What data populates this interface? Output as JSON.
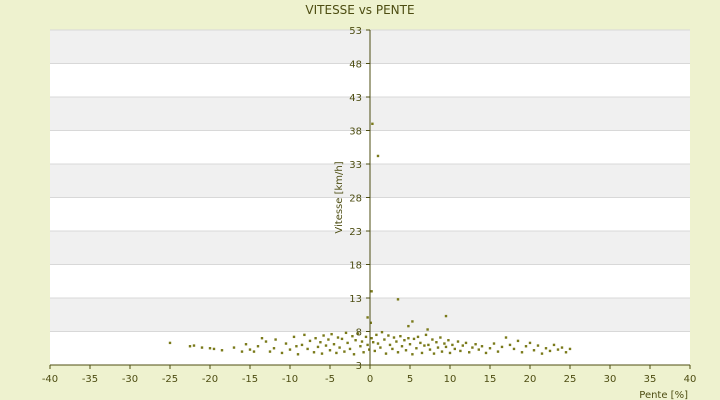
{
  "chart_data": {
    "type": "scatter",
    "title": "VITESSE vs PENTE",
    "xlabel": "Pente [%]",
    "ylabel": "Vitesse [km/h]",
    "xlim": [
      -40,
      40
    ],
    "ylim": [
      3,
      53
    ],
    "xticks": [
      -40,
      -35,
      -30,
      -25,
      -20,
      -15,
      -10,
      -5,
      0,
      5,
      10,
      15,
      20,
      25,
      30,
      35,
      40
    ],
    "yticks": [
      3,
      8,
      13,
      18,
      23,
      28,
      33,
      38,
      43,
      48,
      53
    ],
    "grid": true,
    "legend": "none",
    "colors": {
      "background": "#eef2cf",
      "plot": "#ffffff",
      "band": "#f0f0f0",
      "point": "#7a7a1a",
      "axis": "#4d4d12",
      "text": "#4d4d12"
    },
    "series": [
      {
        "points": [
          [
            0.3,
            39
          ],
          [
            1.0,
            34.2
          ],
          [
            0.2,
            14
          ],
          [
            3.5,
            12.8
          ],
          [
            9.5,
            10.3
          ],
          [
            -0.3,
            10.1
          ],
          [
            0.1,
            9.3
          ],
          [
            5.3,
            9.5
          ],
          [
            4.8,
            8.8
          ],
          [
            7.2,
            8.3
          ],
          [
            -25,
            6.3
          ],
          [
            -22.5,
            5.8
          ],
          [
            -22,
            5.9
          ],
          [
            -21,
            5.6
          ],
          [
            -20,
            5.5
          ],
          [
            -19.5,
            5.4
          ],
          [
            -18.5,
            5.2
          ],
          [
            -17,
            5.6
          ],
          [
            -16,
            5.0
          ],
          [
            -15.5,
            6.1
          ],
          [
            -15,
            5.3
          ],
          [
            -14.5,
            5.0
          ],
          [
            -14,
            5.8
          ],
          [
            -13.5,
            7.0
          ],
          [
            -13,
            6.5
          ],
          [
            -12.5,
            5.0
          ],
          [
            -12,
            5.5
          ],
          [
            -11.8,
            6.8
          ],
          [
            -11,
            4.8
          ],
          [
            -10.5,
            6.2
          ],
          [
            -10,
            5.3
          ],
          [
            -9.5,
            7.2
          ],
          [
            -9.2,
            5.8
          ],
          [
            -9,
            4.6
          ],
          [
            -8.5,
            6.0
          ],
          [
            -8.2,
            7.5
          ],
          [
            -7.8,
            5.4
          ],
          [
            -7.5,
            6.6
          ],
          [
            -7,
            4.9
          ],
          [
            -6.8,
            7.0
          ],
          [
            -6.5,
            5.7
          ],
          [
            -6.2,
            6.4
          ],
          [
            -6,
            4.7
          ],
          [
            -5.8,
            7.4
          ],
          [
            -5.5,
            5.9
          ],
          [
            -5.2,
            6.8
          ],
          [
            -5,
            5.2
          ],
          [
            -4.8,
            7.6
          ],
          [
            -4.5,
            6.1
          ],
          [
            -4.2,
            4.8
          ],
          [
            -4,
            7.1
          ],
          [
            -3.8,
            5.6
          ],
          [
            -3.5,
            6.9
          ],
          [
            -3.2,
            5.0
          ],
          [
            -3,
            7.8
          ],
          [
            -2.8,
            6.3
          ],
          [
            -2.5,
            5.4
          ],
          [
            -2.2,
            7.3
          ],
          [
            -2,
            4.6
          ],
          [
            -1.8,
            6.7
          ],
          [
            -1.5,
            7.7
          ],
          [
            -1.2,
            5.8
          ],
          [
            -1,
            6.5
          ],
          [
            -0.8,
            4.9
          ],
          [
            -0.5,
            7.2
          ],
          [
            -0.3,
            6.0
          ],
          [
            -0.1,
            5.3
          ],
          [
            0.2,
            7.0
          ],
          [
            0.4,
            6.4
          ],
          [
            0.6,
            5.1
          ],
          [
            0.8,
            7.5
          ],
          [
            1,
            6.2
          ],
          [
            1.3,
            5.6
          ],
          [
            1.5,
            7.9
          ],
          [
            1.8,
            6.8
          ],
          [
            2,
            4.7
          ],
          [
            2.3,
            7.4
          ],
          [
            2.5,
            6.0
          ],
          [
            2.8,
            5.4
          ],
          [
            3,
            7.1
          ],
          [
            3.3,
            6.5
          ],
          [
            3.5,
            4.9
          ],
          [
            3.8,
            7.3
          ],
          [
            4,
            5.8
          ],
          [
            4.3,
            6.7
          ],
          [
            4.5,
            5.2
          ],
          [
            4.8,
            7.0
          ],
          [
            5,
            6.1
          ],
          [
            5.3,
            4.6
          ],
          [
            5.5,
            6.9
          ],
          [
            5.8,
            5.5
          ],
          [
            6,
            7.2
          ],
          [
            6.3,
            6.3
          ],
          [
            6.5,
            4.8
          ],
          [
            6.8,
            5.9
          ],
          [
            7,
            7.5
          ],
          [
            7.3,
            6.0
          ],
          [
            7.5,
            5.3
          ],
          [
            7.8,
            6.8
          ],
          [
            8,
            4.7
          ],
          [
            8.3,
            6.4
          ],
          [
            8.5,
            5.6
          ],
          [
            8.8,
            7.1
          ],
          [
            9,
            5.0
          ],
          [
            9.3,
            6.2
          ],
          [
            9.5,
            5.7
          ],
          [
            9.8,
            6.7
          ],
          [
            10,
            4.8
          ],
          [
            10.3,
            6.0
          ],
          [
            10.6,
            5.4
          ],
          [
            11,
            6.5
          ],
          [
            11.3,
            5.1
          ],
          [
            11.6,
            5.9
          ],
          [
            12,
            6.3
          ],
          [
            12.4,
            4.9
          ],
          [
            12.8,
            5.6
          ],
          [
            13.2,
            6.1
          ],
          [
            13.6,
            5.3
          ],
          [
            14,
            5.8
          ],
          [
            14.5,
            4.8
          ],
          [
            15,
            5.5
          ],
          [
            15.5,
            6.2
          ],
          [
            16,
            5.0
          ],
          [
            16.5,
            5.7
          ],
          [
            17,
            7.1
          ],
          [
            17.5,
            6.0
          ],
          [
            18,
            5.4
          ],
          [
            18.5,
            6.6
          ],
          [
            19,
            4.9
          ],
          [
            19.5,
            5.8
          ],
          [
            20,
            6.3
          ],
          [
            20.5,
            5.2
          ],
          [
            21,
            5.9
          ],
          [
            21.5,
            4.7
          ],
          [
            22,
            5.5
          ],
          [
            22.5,
            5.1
          ],
          [
            23,
            6.0
          ],
          [
            23.5,
            5.3
          ],
          [
            24,
            5.6
          ],
          [
            24.5,
            4.9
          ],
          [
            25,
            5.4
          ]
        ]
      }
    ]
  }
}
